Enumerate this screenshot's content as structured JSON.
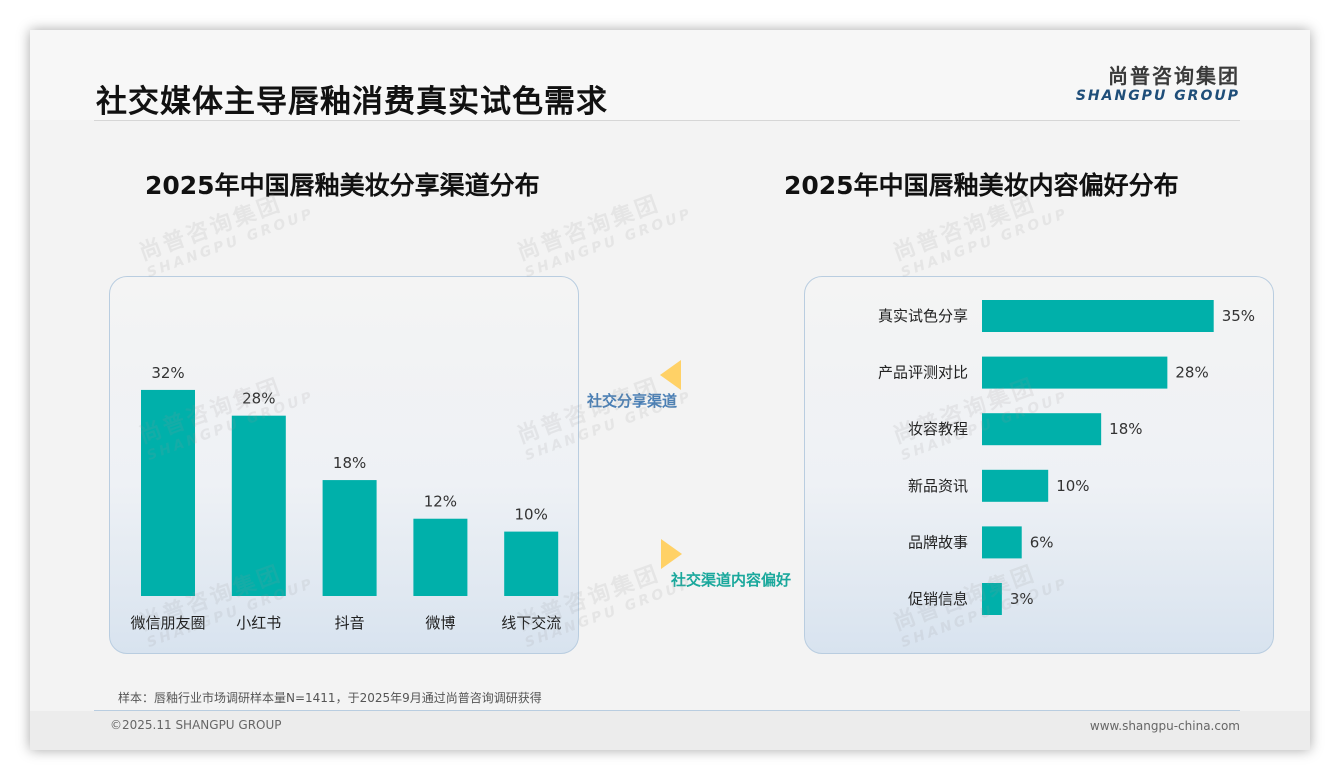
{
  "header": {
    "title": "社交媒体主导唇釉消费真实试色需求",
    "logo_cn": "尚普咨询集团",
    "logo_en": "SHANGPU GROUP"
  },
  "connectors": {
    "left_label": "社交分享渠道",
    "right_label": "社交渠道内容偏好",
    "colors": {
      "arrow": "#ffd166",
      "left_text": "#4a7fb5",
      "right_text": "#1aa89c"
    }
  },
  "chart_data": [
    {
      "type": "bar",
      "title": "2025年中国唇釉美妆分享渠道分布",
      "categories": [
        "微信朋友圈",
        "小红书",
        "抖音",
        "微博",
        "线下交流"
      ],
      "values": [
        32,
        28,
        18,
        12,
        10
      ],
      "labels": [
        "32%",
        "28%",
        "18%",
        "12%",
        "10%"
      ],
      "unit": "%",
      "color": "#00b0aa",
      "grid": false,
      "legend": "none"
    },
    {
      "type": "bar",
      "orientation": "horizontal",
      "title": "2025年中国唇釉美妆内容偏好分布",
      "categories": [
        "真实试色分享",
        "产品评测对比",
        "妆容教程",
        "新品资讯",
        "品牌故事",
        "促销信息"
      ],
      "values": [
        35,
        28,
        18,
        10,
        6,
        3
      ],
      "labels": [
        "35%",
        "28%",
        "18%",
        "10%",
        "6%",
        "3%"
      ],
      "unit": "%",
      "color": "#00b0aa",
      "grid": false,
      "legend": "none"
    }
  ],
  "watermark": {
    "cn": "尚普咨询集团",
    "en": "SHANGPU GROUP"
  },
  "footer": {
    "note": "样本：唇釉行业市场调研样本量N=1411，于2025年9月通过尚普咨询调研获得",
    "copyright": "©2025.11 SHANGPU GROUP",
    "website": "www.shangpu-china.com"
  }
}
